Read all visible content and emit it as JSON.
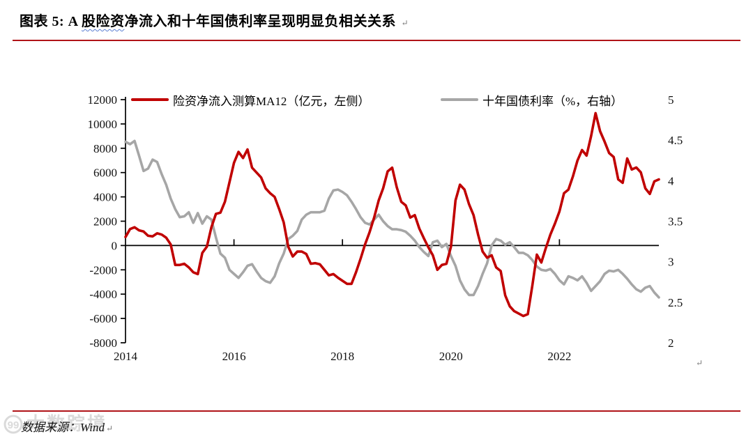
{
  "title": {
    "prefix": "图表 5: A ",
    "wavy": "股险资",
    "rest": "净流入和十年国债利率呈现明显负相关关系",
    "mark": "↵"
  },
  "source": {
    "label": "数据来源：Wind",
    "mark": "↵"
  },
  "watermark": {
    "logo": "99",
    "text": "大数踪境"
  },
  "chart_end_mark": "↵",
  "colors": {
    "accent_rule": "#b01318",
    "red_series": "#C00000",
    "gray_series": "#A6A6A6",
    "axis": "#000000"
  },
  "chart_data": {
    "type": "line",
    "title": "A股险资净流入和十年国债利率呈现明显负相关关系",
    "x_start": "2014-01",
    "x_interval": "month",
    "x_labels": [
      "2014",
      "2016",
      "2018",
      "2020",
      "2022"
    ],
    "x_label_step_months": 24,
    "left_axis": {
      "min": -8000,
      "max": 12000,
      "ticks": [
        12000,
        10000,
        8000,
        6000,
        4000,
        2000,
        0,
        -2000,
        -4000,
        -6000,
        -8000
      ]
    },
    "right_axis": {
      "min": 2,
      "max": 5,
      "ticks": [
        5,
        4.5,
        4,
        3.5,
        3,
        2.5,
        2
      ]
    },
    "grid": false,
    "legend_position": "top",
    "series": [
      {
        "name": "险资净流入测算MA12（亿元，左侧）",
        "axis": "left",
        "color": "#C00000",
        "values": [
          700,
          1350,
          1500,
          1250,
          1150,
          800,
          750,
          1000,
          900,
          650,
          100,
          -1600,
          -1600,
          -1500,
          -1800,
          -2200,
          -2350,
          -600,
          -100,
          1500,
          2600,
          2700,
          3600,
          5200,
          6800,
          7700,
          7200,
          7900,
          6400,
          6000,
          5600,
          4700,
          4300,
          4000,
          3000,
          1900,
          -100,
          -900,
          -500,
          -500,
          -700,
          -1500,
          -1450,
          -1550,
          -2000,
          -2450,
          -2350,
          -2650,
          -2900,
          -3150,
          -3150,
          -2200,
          -1100,
          100,
          1100,
          2300,
          3700,
          4700,
          6100,
          6400,
          4800,
          3600,
          3300,
          2300,
          2500,
          1400,
          600,
          -150,
          -800,
          -2000,
          -1600,
          -1500,
          -100,
          3700,
          5000,
          4600,
          3400,
          2500,
          900,
          -500,
          -1000,
          -800,
          -1800,
          -2100,
          -4100,
          -5000,
          -5400,
          -5600,
          -5800,
          -5650,
          -3300,
          -750,
          -1400,
          -200,
          900,
          1800,
          2800,
          4300,
          4600,
          5700,
          7000,
          7850,
          7400,
          9000,
          10890,
          9400,
          8540,
          7600,
          7280,
          5440,
          5160,
          7160,
          6250,
          6420,
          6020,
          4700,
          4240,
          5270,
          5440
        ]
      },
      {
        "name": "十年国债利率（%，右轴）",
        "axis": "right",
        "color": "#A6A6A6",
        "values": [
          4.48,
          4.45,
          4.49,
          4.31,
          4.12,
          4.15,
          4.26,
          4.23,
          4.08,
          3.95,
          3.78,
          3.65,
          3.55,
          3.56,
          3.61,
          3.48,
          3.6,
          3.47,
          3.56,
          3.52,
          3.3,
          3.1,
          3.05,
          2.9,
          2.85,
          2.8,
          2.87,
          2.95,
          2.97,
          2.88,
          2.8,
          2.76,
          2.74,
          2.82,
          2.98,
          3.1,
          3.28,
          3.32,
          3.38,
          3.52,
          3.58,
          3.61,
          3.61,
          3.61,
          3.63,
          3.78,
          3.88,
          3.89,
          3.86,
          3.82,
          3.74,
          3.65,
          3.55,
          3.48,
          3.46,
          3.52,
          3.58,
          3.5,
          3.44,
          3.4,
          3.4,
          3.39,
          3.37,
          3.32,
          3.26,
          3.18,
          3.12,
          3.07,
          3.24,
          3.26,
          3.18,
          3.22,
          3.07,
          2.95,
          2.77,
          2.66,
          2.59,
          2.59,
          2.7,
          2.85,
          2.98,
          3.2,
          3.28,
          3.26,
          3.21,
          3.24,
          3.18,
          3.11,
          3.11,
          3.08,
          3.02,
          2.94,
          2.9,
          2.89,
          2.91,
          2.85,
          2.77,
          2.72,
          2.82,
          2.8,
          2.77,
          2.82,
          2.74,
          2.64,
          2.7,
          2.76,
          2.85,
          2.89,
          2.88,
          2.9,
          2.85,
          2.79,
          2.72,
          2.66,
          2.63,
          2.68,
          2.7,
          2.62,
          2.56
        ]
      }
    ]
  }
}
